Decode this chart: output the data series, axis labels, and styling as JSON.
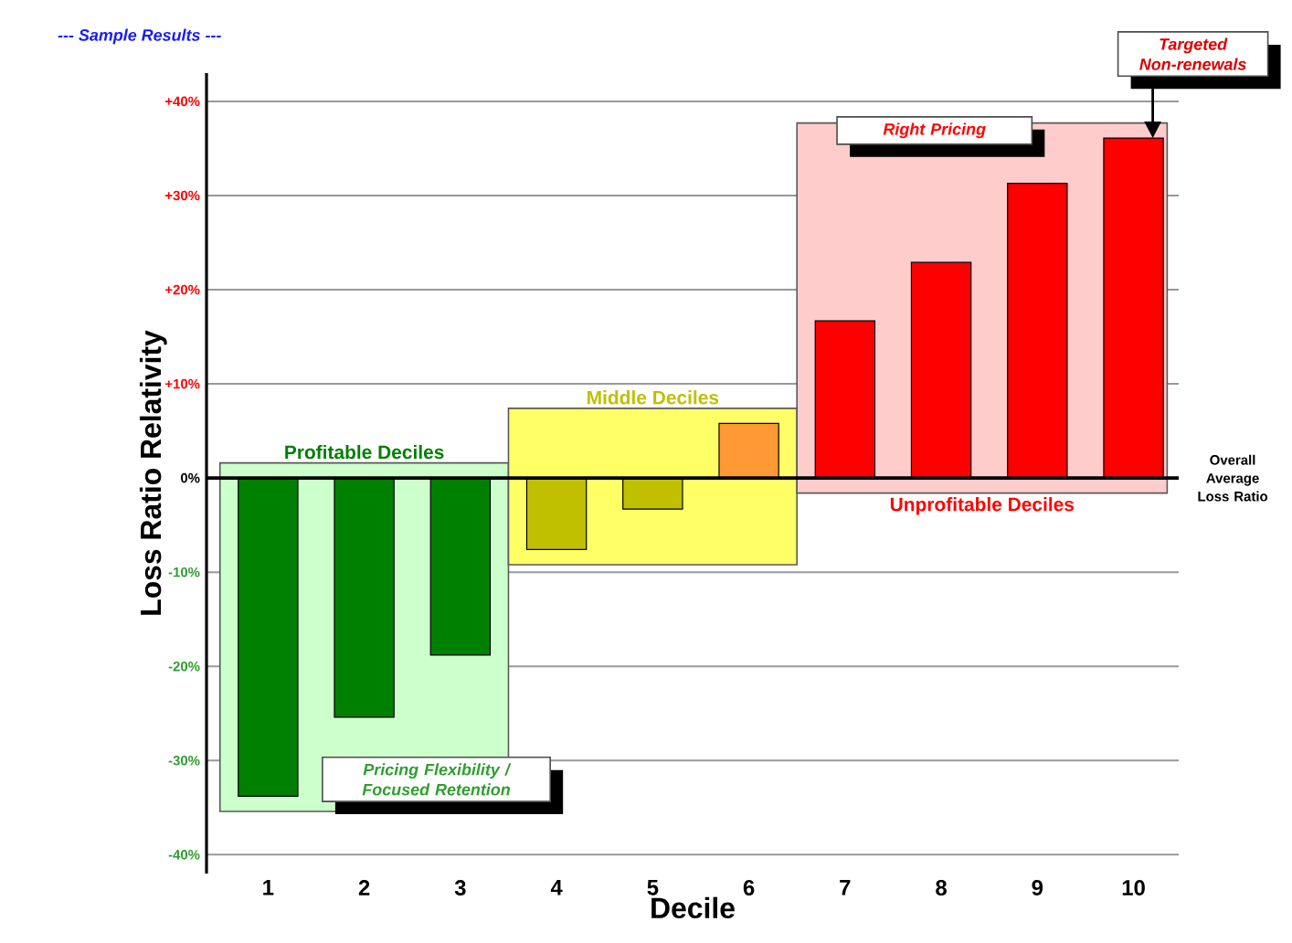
{
  "chart_data": {
    "type": "bar",
    "title": "--- Sample Results ---",
    "xlabel": "Decile",
    "ylabel": "Loss Ratio Relativity",
    "x": [
      1,
      2,
      3,
      4,
      5,
      6,
      7,
      8,
      9,
      10
    ],
    "values": [
      -33.8,
      -25.4,
      -18.8,
      -7.6,
      -3.3,
      5.8,
      16.7,
      22.9,
      31.3,
      36.1
    ],
    "colors": [
      "#008000",
      "#008000",
      "#008000",
      "#c0c000",
      "#c0c000",
      "#ff9933",
      "#ff0000",
      "#ff0000",
      "#ff0000",
      "#ff0000"
    ],
    "xlim": [
      0.36,
      10.47
    ],
    "xticks": [
      1,
      2,
      3,
      4,
      5,
      6,
      7,
      8,
      9,
      10
    ],
    "ylim": [
      -42,
      43
    ],
    "yticks": [
      {
        "value": -40,
        "label": "-40%"
      },
      {
        "value": -30,
        "label": "-30%"
      },
      {
        "value": -20,
        "label": "-20%"
      },
      {
        "value": -10,
        "label": "-10%"
      },
      {
        "value": 0,
        "label": "0%"
      },
      {
        "value": 10,
        "label": "+10%"
      },
      {
        "value": 20,
        "label": "+20%"
      },
      {
        "value": 30,
        "label": "+30%"
      },
      {
        "value": 40,
        "label": "+40%"
      }
    ],
    "grid": "y",
    "bands": [
      {
        "axis": "x",
        "from": 0.5,
        "to": 3.5,
        "label": "Profitable Deciles",
        "color": "#ccffcc"
      },
      {
        "axis": "x",
        "from": 3.5,
        "to": 6.5,
        "label": "Middle Deciles",
        "color": "#ffff66"
      },
      {
        "axis": "x",
        "from": 6.5,
        "to": 10.35,
        "label": "Unprofitable Deciles",
        "color": "#ffcccc"
      }
    ],
    "ref_lines": [
      {
        "axis": "y",
        "value": 0,
        "label": "Overall Average Loss Ratio",
        "color": "#000000"
      }
    ],
    "annotations": [
      "Pricing Flexibility / Focused Retention",
      "Right Pricing",
      {
        "text": "Targeted Non-renewals",
        "x": 10.2,
        "y": 36.1
      }
    ]
  }
}
